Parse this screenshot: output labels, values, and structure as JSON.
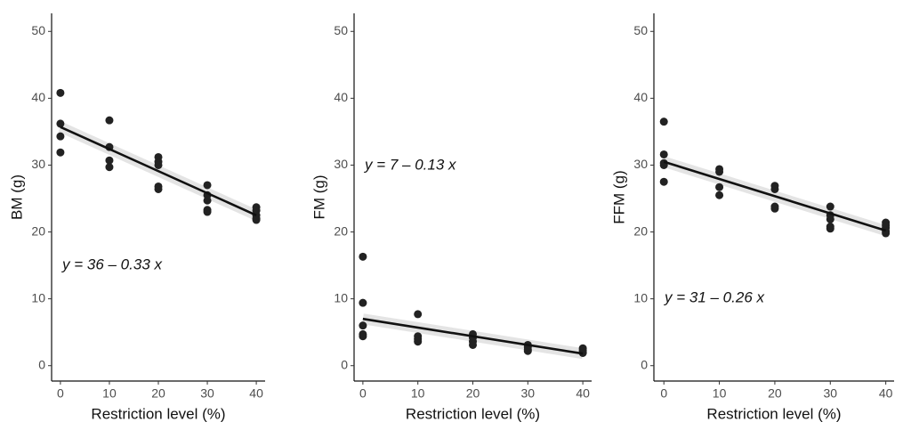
{
  "chart_data": [
    {
      "type": "scatter",
      "y_label": "BM (g)",
      "x_label": "Restriction level (%)",
      "annotation": "y = 36 – 0.33 x",
      "x": [
        0,
        0,
        0,
        0,
        10,
        10,
        10,
        10,
        20,
        20,
        20,
        20,
        20,
        30,
        30,
        30,
        30,
        30,
        40,
        40,
        40,
        40,
        40
      ],
      "values": [
        40.8,
        36.2,
        34.3,
        31.9,
        36.7,
        32.7,
        30.7,
        29.7,
        31.2,
        30.5,
        30,
        26.8,
        26.4,
        27,
        25.5,
        24.7,
        23.3,
        23,
        23.7,
        23.2,
        22.5,
        22,
        21.8
      ],
      "fit_line": {
        "x": [
          0,
          40
        ],
        "values": [
          35.7,
          22.5
        ]
      },
      "color": "#222222",
      "xlim": [
        -1.8,
        41.8
      ],
      "ylim": [
        -2.3,
        52.7
      ],
      "xticks": [
        0,
        10,
        20,
        30,
        40
      ],
      "yticks": [
        0,
        10,
        20,
        30,
        40,
        50
      ]
    },
    {
      "type": "scatter",
      "y_label": "FM (g)",
      "x_label": "Restriction level (%)",
      "annotation": "y = 7 – 0.13 x",
      "x": [
        0,
        0,
        0,
        0,
        0,
        10,
        10,
        10,
        10,
        20,
        20,
        20,
        20,
        30,
        30,
        30,
        30,
        40,
        40,
        40,
        40
      ],
      "values": [
        16.3,
        9.4,
        6,
        4.7,
        4.4,
        7.7,
        4.4,
        4,
        3.6,
        4.7,
        4.2,
        3.6,
        3.1,
        3.1,
        2.8,
        2.4,
        2.2,
        2.6,
        2.3,
        2,
        1.9
      ],
      "fit_line": {
        "x": [
          0,
          40
        ],
        "values": [
          7,
          1.8
        ]
      },
      "color": "#222222",
      "xlim": [
        -1.6,
        41.6
      ],
      "ylim": [
        -2.3,
        52.7
      ],
      "xticks": [
        0,
        10,
        20,
        30,
        40
      ],
      "yticks": [
        0,
        10,
        20,
        30,
        40,
        50
      ]
    },
    {
      "type": "scatter",
      "y_label": "FFM (g)",
      "x_label": "Restriction level (%)",
      "annotation": "y = 31 – 0.26 x",
      "x": [
        0,
        0,
        0,
        0,
        0,
        10,
        10,
        10,
        10,
        20,
        20,
        20,
        20,
        30,
        30,
        30,
        30,
        30,
        40,
        40,
        40,
        40,
        40
      ],
      "values": [
        36.5,
        31.6,
        30.3,
        30,
        27.5,
        29.4,
        29,
        26.7,
        25.5,
        26.9,
        26.4,
        23.8,
        23.5,
        23.8,
        22.5,
        21.9,
        20.8,
        20.5,
        21.4,
        21,
        20.6,
        20.1,
        19.8
      ],
      "fit_line": {
        "x": [
          0,
          40
        ],
        "values": [
          30.5,
          20.2
        ]
      },
      "color": "#222222",
      "xlim": [
        -1.8,
        41.5
      ],
      "ylim": [
        -2.3,
        52.7
      ],
      "xticks": [
        0,
        10,
        20,
        30,
        40
      ],
      "yticks": [
        0,
        10,
        20,
        30,
        40,
        50
      ]
    }
  ]
}
